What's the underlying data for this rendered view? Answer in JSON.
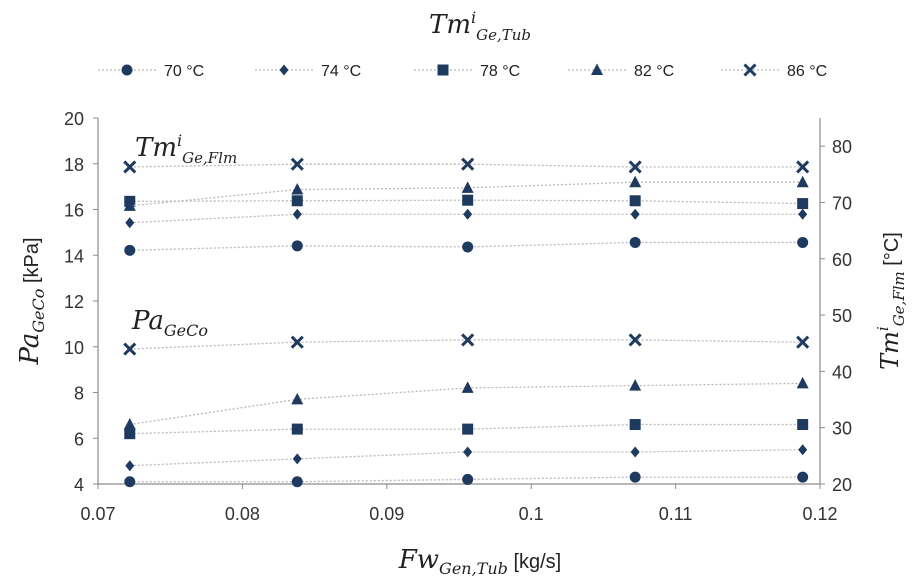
{
  "chart_data": {
    "type": "line",
    "legend": {
      "title_main": "Tm",
      "title_sup": "i",
      "title_sub": "Ge,Tub",
      "placement": "top",
      "items": [
        "70 °C",
        "74 °C",
        "78 °C",
        "82 °C",
        "86 °C"
      ]
    },
    "x": [
      0.0722,
      0.0838,
      0.0956,
      0.1072,
      0.1188
    ],
    "xlabel": {
      "main": "Fw",
      "sub": "Gen,Tub",
      "unit": " [kg/s]"
    },
    "xlim": [
      0.07,
      0.12
    ],
    "xticks": [
      "0.07",
      "0.08",
      "0.09",
      "0.1",
      "0.11",
      "0.12"
    ],
    "ylabel_left": {
      "main": "Pa",
      "sub": "GeCo",
      "unit": " [kPa]"
    },
    "ylim_left": [
      4,
      20
    ],
    "yticks_left": [
      "4",
      "6",
      "8",
      "10",
      "12",
      "14",
      "16",
      "18",
      "20"
    ],
    "ylabel_right": {
      "main": "Tm",
      "sup": "i",
      "sub": "Ge,Flm",
      "unit": " [°C]"
    },
    "ylim_right": [
      20,
      85
    ],
    "yticks_right": [
      "20",
      "30",
      "40",
      "50",
      "60",
      "70",
      "80"
    ],
    "annotations": {
      "upper": {
        "main": "Tm",
        "sup": "i",
        "sub": "Ge,Flm"
      },
      "lower": {
        "main": "Pa",
        "sub": "GeCo"
      }
    },
    "grid": false,
    "groups": [
      {
        "axis": "right",
        "series": [
          {
            "name": "70 °C",
            "marker": "circle",
            "values": [
              61.5,
              62.3,
              62.1,
              62.9,
              62.9
            ]
          },
          {
            "name": "74 °C",
            "marker": "diamond",
            "values": [
              66.4,
              67.9,
              67.9,
              67.9,
              67.9
            ]
          },
          {
            "name": "78 °C",
            "marker": "square",
            "values": [
              70.2,
              70.3,
              70.4,
              70.3,
              69.8
            ]
          },
          {
            "name": "82 °C",
            "marker": "triangle",
            "values": [
              69.4,
              72.3,
              72.6,
              73.6,
              73.6
            ]
          },
          {
            "name": "86 °C",
            "marker": "x",
            "values": [
              76.3,
              76.8,
              76.8,
              76.3,
              76.3
            ]
          }
        ]
      },
      {
        "axis": "left",
        "series": [
          {
            "name": "70 °C",
            "marker": "circle",
            "values": [
              4.1,
              4.1,
              4.2,
              4.3,
              4.3
            ]
          },
          {
            "name": "74 °C",
            "marker": "diamond",
            "values": [
              4.8,
              5.1,
              5.4,
              5.4,
              5.5
            ]
          },
          {
            "name": "78 °C",
            "marker": "square",
            "values": [
              6.2,
              6.4,
              6.4,
              6.6,
              6.6
            ]
          },
          {
            "name": "82 °C",
            "marker": "triangle",
            "values": [
              6.6,
              7.7,
              8.2,
              8.3,
              8.4
            ]
          },
          {
            "name": "86 °C",
            "marker": "x",
            "values": [
              9.9,
              10.2,
              10.3,
              10.3,
              10.2
            ]
          }
        ]
      }
    ]
  },
  "colors": {
    "marker": "#1f3a5f",
    "line": "#b8b8b8",
    "axis": "#8c8c8c",
    "text": "#222222"
  }
}
